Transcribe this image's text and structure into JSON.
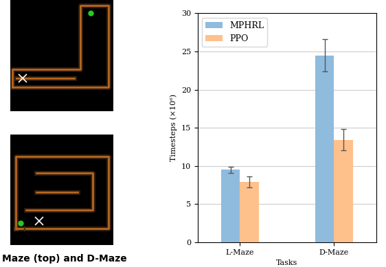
{
  "chart_data": {
    "type": "bar",
    "x_label": "Tasks",
    "y_label": "Timesteps (×10⁶)",
    "annotations": [
      "Maze (top) and D-Maze"
    ],
    "categories": [
      "L-Maze",
      "D-Maze"
    ],
    "series": [
      {
        "name": "MPHRL",
        "color": "#8fbbdd",
        "values": [
          9.5,
          24.5
        ],
        "errors": [
          0.4,
          2.1
        ]
      },
      {
        "name": "PPO",
        "color": "#ffc18c",
        "values": [
          7.9,
          13.4
        ],
        "errors": [
          0.7,
          1.4
        ]
      }
    ],
    "ylim": [
      0,
      30
    ],
    "yticks": [
      0,
      5,
      10,
      15,
      20,
      25,
      30
    ],
    "grid": true,
    "legend": "upper left"
  }
}
